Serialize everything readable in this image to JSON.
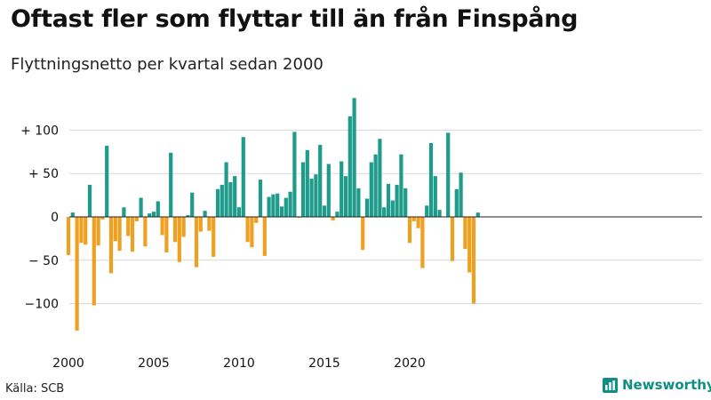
{
  "title": "Oftast fler som flyttar till än från Finspång",
  "subtitle": "Flyttningsnetto per kvartal sedan 2000",
  "source": "Källa: SCB",
  "brand": {
    "name": "Newsworthy",
    "icon": "bar-chart-logo-icon"
  },
  "colors": {
    "positive": "#1e9b8a",
    "negative": "#f0a020",
    "grid": "#d9d9d9",
    "zero": "#222222"
  },
  "chart_data": {
    "type": "bar",
    "x_start": "2000 Q1",
    "x_end": "2024 Q1",
    "xticks": [
      "2000",
      "2005",
      "2010",
      "2015",
      "2020"
    ],
    "yticks": [
      {
        "value": 100,
        "label": "+ 100"
      },
      {
        "value": 50,
        "label": "+  50"
      },
      {
        "value": 0,
        "label": "0"
      },
      {
        "value": -50,
        "label": "− 50"
      },
      {
        "value": -100,
        "label": "−100"
      }
    ],
    "ylim": [
      -130,
      140
    ],
    "grid": true,
    "values": [
      -44,
      5,
      -131,
      -30,
      -32,
      37,
      -102,
      -33,
      -3,
      82,
      -65,
      -28,
      -39,
      11,
      -22,
      -40,
      -5,
      22,
      -34,
      4,
      6,
      18,
      -21,
      -41,
      74,
      -29,
      -52,
      -23,
      2,
      28,
      -58,
      -17,
      7,
      -16,
      -46,
      32,
      37,
      63,
      40,
      47,
      11,
      92,
      -29,
      -35,
      -7,
      43,
      -45,
      23,
      26,
      27,
      12,
      22,
      29,
      98,
      -1,
      63,
      77,
      44,
      49,
      83,
      13,
      61,
      -4,
      6,
      64,
      47,
      116,
      137,
      33,
      -38,
      21,
      63,
      72,
      90,
      11,
      38,
      19,
      37,
      72,
      33,
      -30,
      -5,
      -13,
      -59,
      13,
      85,
      47,
      8,
      0,
      97,
      -51,
      32,
      51,
      -37,
      -64,
      -100,
      5
    ]
  }
}
